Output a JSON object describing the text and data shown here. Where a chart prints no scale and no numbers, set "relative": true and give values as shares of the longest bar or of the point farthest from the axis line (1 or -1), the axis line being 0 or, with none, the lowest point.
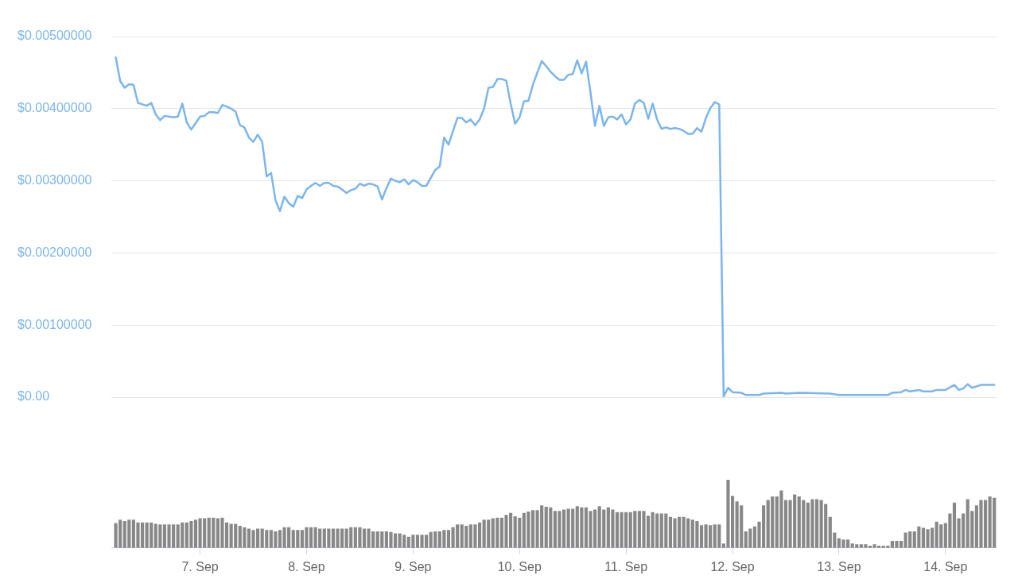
{
  "chart_data": [
    {
      "type": "line",
      "tick_labels": "y",
      "grid": "y",
      "xlim": [
        "--09-06T04:00",
        "--09-14T11:30"
      ],
      "ylim": [
        0,
        0.005
      ],
      "yticks": [
        {
          "value": 0,
          "label": "$0.00"
        },
        {
          "value": 0.001,
          "label": "$0.00100000"
        },
        {
          "value": 0.002,
          "label": "$0.00200000"
        },
        {
          "value": 0.003,
          "label": "$0.00300000"
        },
        {
          "value": 0.004,
          "label": "$0.00400000"
        },
        {
          "value": 0.005,
          "label": "$0.00500000"
        }
      ],
      "x": [
        "--09-06T05:00",
        "--09-06T06:00",
        "--09-06T07:00",
        "--09-06T08:00",
        "--09-06T09:00",
        "--09-06T10:00",
        "--09-06T11:00",
        "--09-06T12:00",
        "--09-06T13:00",
        "--09-06T14:00",
        "--09-06T15:00",
        "--09-06T16:00",
        "--09-06T17:00",
        "--09-06T18:00",
        "--09-06T19:00",
        "--09-06T20:00",
        "--09-06T21:00",
        "--09-06T22:00",
        "--09-06T23:00",
        "--09-07T00:00",
        "--09-07T01:00",
        "--09-07T02:00",
        "--09-07T03:00",
        "--09-07T04:00",
        "--09-07T05:00",
        "--09-07T06:00",
        "--09-07T07:00",
        "--09-07T08:00",
        "--09-07T09:00",
        "--09-07T10:00",
        "--09-07T11:00",
        "--09-07T12:00",
        "--09-07T13:00",
        "--09-07T14:00",
        "--09-07T15:00",
        "--09-07T16:00",
        "--09-07T17:00",
        "--09-07T18:00",
        "--09-07T19:00",
        "--09-07T20:00",
        "--09-07T21:00",
        "--09-07T22:00",
        "--09-07T23:00",
        "--09-08T00:00",
        "--09-08T01:00",
        "--09-08T02:00",
        "--09-08T03:00",
        "--09-08T04:00",
        "--09-08T05:00",
        "--09-08T06:00",
        "--09-08T07:00",
        "--09-08T08:00",
        "--09-08T09:00",
        "--09-08T10:00",
        "--09-08T11:00",
        "--09-08T12:00",
        "--09-08T13:00",
        "--09-08T14:00",
        "--09-08T15:00",
        "--09-08T16:00",
        "--09-08T17:00",
        "--09-08T18:00",
        "--09-08T19:00",
        "--09-08T20:00",
        "--09-08T21:00",
        "--09-08T22:00",
        "--09-08T23:00",
        "--09-09T00:00",
        "--09-09T01:00",
        "--09-09T02:00",
        "--09-09T03:00",
        "--09-09T04:00",
        "--09-09T05:00",
        "--09-09T06:00",
        "--09-09T07:00",
        "--09-09T08:00",
        "--09-09T09:00",
        "--09-09T10:00",
        "--09-09T11:00",
        "--09-09T12:00",
        "--09-09T13:00",
        "--09-09T14:00",
        "--09-09T15:00",
        "--09-09T16:00",
        "--09-09T17:00",
        "--09-09T18:00",
        "--09-09T19:00",
        "--09-09T20:00",
        "--09-09T21:00",
        "--09-09T22:00",
        "--09-09T23:00",
        "--09-10T00:00",
        "--09-10T01:00",
        "--09-10T02:00",
        "--09-10T03:00",
        "--09-10T04:00",
        "--09-10T05:00",
        "--09-10T06:00",
        "--09-10T07:00",
        "--09-10T08:00",
        "--09-10T09:00",
        "--09-10T10:00",
        "--09-10T11:00",
        "--09-10T12:00",
        "--09-10T13:00",
        "--09-10T14:00",
        "--09-10T15:00",
        "--09-10T16:00",
        "--09-10T17:00",
        "--09-10T18:00",
        "--09-10T19:00",
        "--09-10T20:00",
        "--09-10T21:00",
        "--09-10T22:00",
        "--09-10T23:00",
        "--09-11T00:00",
        "--09-11T01:00",
        "--09-11T02:00",
        "--09-11T03:00",
        "--09-11T04:00",
        "--09-11T05:00",
        "--09-11T06:00",
        "--09-11T07:00",
        "--09-11T08:00",
        "--09-11T09:00",
        "--09-11T10:00",
        "--09-11T11:00",
        "--09-11T12:00",
        "--09-11T13:00",
        "--09-11T14:00",
        "--09-11T15:00",
        "--09-11T16:00",
        "--09-11T17:00",
        "--09-11T18:00",
        "--09-11T19:00",
        "--09-11T20:00",
        "--09-11T21:00",
        "--09-11T22:00",
        "--09-11T23:00",
        "--09-12T00:00",
        "--09-12T02:00",
        "--09-12T03:00",
        "--09-12T06:00",
        "--09-12T07:00",
        "--09-12T11:00",
        "--09-12T12:00",
        "--09-12T15:00",
        "--09-12T22:00",
        "--09-13T00:00",
        "--09-13T05:00",
        "--09-13T11:00",
        "--09-13T12:00",
        "--09-13T14:00",
        "--09-13T15:00",
        "--09-13T16:00",
        "--09-13T18:00",
        "--09-13T19:00",
        "--09-13T21:00",
        "--09-13T22:00",
        "--09-14T00:00",
        "--09-14T02:00",
        "--09-14T03:00",
        "--09-14T04:00",
        "--09-14T05:00",
        "--09-14T06:00",
        "--09-14T08:00",
        "--09-14T10:00",
        "--09-14T11:00"
      ],
      "series": [
        {
          "color": "#7cb5ec",
          "values": [
            0.00471,
            0.00438,
            0.00429,
            0.00434,
            0.00433,
            0.00408,
            0.00406,
            0.00404,
            0.00408,
            0.00392,
            0.00384,
            0.0039,
            0.00389,
            0.00388,
            0.00389,
            0.00407,
            0.00381,
            0.00371,
            0.0038,
            0.00389,
            0.0039,
            0.00395,
            0.00395,
            0.00394,
            0.00405,
            0.00403,
            0.004,
            0.00396,
            0.00377,
            0.00374,
            0.0036,
            0.00354,
            0.00364,
            0.00354,
            0.00306,
            0.00311,
            0.00273,
            0.00258,
            0.00278,
            0.00269,
            0.00264,
            0.00279,
            0.00276,
            0.00288,
            0.00293,
            0.00297,
            0.00293,
            0.00297,
            0.00297,
            0.00293,
            0.00292,
            0.00288,
            0.00283,
            0.00287,
            0.00289,
            0.00296,
            0.00293,
            0.00296,
            0.00295,
            0.00292,
            0.00274,
            0.0029,
            0.00303,
            0.003,
            0.00298,
            0.00302,
            0.00295,
            0.00301,
            0.00298,
            0.00293,
            0.00293,
            0.00304,
            0.00315,
            0.0032,
            0.0036,
            0.0035,
            0.00369,
            0.00387,
            0.00387,
            0.00381,
            0.00385,
            0.00377,
            0.00385,
            0.004,
            0.00429,
            0.0043,
            0.00441,
            0.00441,
            0.00439,
            0.00407,
            0.00379,
            0.00388,
            0.0041,
            0.00411,
            0.00433,
            0.0045,
            0.00466,
            0.00459,
            0.00451,
            0.00445,
            0.0044,
            0.0044,
            0.00447,
            0.00448,
            0.00467,
            0.00449,
            0.00465,
            0.00422,
            0.00376,
            0.00404,
            0.00376,
            0.00388,
            0.00389,
            0.00385,
            0.00392,
            0.00378,
            0.00385,
            0.00407,
            0.00412,
            0.00408,
            0.00386,
            0.00407,
            0.00385,
            0.00372,
            0.00374,
            0.00372,
            0.00373,
            0.00372,
            0.00369,
            0.00365,
            0.00365,
            0.00373,
            0.00368,
            0.00387,
            0.00401,
            0.00409,
            0.00406,
            1e-05,
            0.00013,
            7e-05,
            6e-05,
            3e-05,
            3e-05,
            5e-05,
            6e-05,
            5e-05,
            6e-05,
            5e-05,
            3e-05,
            3e-05,
            3e-05,
            6e-05,
            7e-05,
            0.0001,
            8e-05,
            0.0001,
            8e-05,
            8e-05,
            0.0001,
            0.0001,
            0.00017,
            0.0001,
            0.00012,
            0.00018,
            0.00013,
            0.00017,
            0.00017,
            0.00017
          ]
        }
      ]
    },
    {
      "type": "bar",
      "relative": true,
      "tick_labels": "x",
      "xlim": [
        "--09-06T04:00",
        "--09-14T11:30"
      ],
      "xticks": [
        {
          "value": "--09-07",
          "label": "7. Sep"
        },
        {
          "value": "--09-08",
          "label": "8. Sep"
        },
        {
          "value": "--09-09",
          "label": "9. Sep"
        },
        {
          "value": "--09-10",
          "label": "10. Sep"
        },
        {
          "value": "--09-11",
          "label": "11. Sep"
        },
        {
          "value": "--09-12",
          "label": "12. Sep"
        },
        {
          "value": "--09-13",
          "label": "13. Sep"
        },
        {
          "value": "--09-14",
          "label": "14. Sep"
        }
      ],
      "x": [
        "--09-06T05:00",
        "--09-06T06:00",
        "--09-06T07:00",
        "--09-06T08:00",
        "--09-06T09:00",
        "--09-06T10:00",
        "--09-06T11:00",
        "--09-06T12:00",
        "--09-06T13:00",
        "--09-06T14:00",
        "--09-06T15:00",
        "--09-06T16:00",
        "--09-06T17:00",
        "--09-06T18:00",
        "--09-06T19:00",
        "--09-06T20:00",
        "--09-06T21:00",
        "--09-06T22:00",
        "--09-06T23:00",
        "--09-07T00:00",
        "--09-07T01:00",
        "--09-07T02:00",
        "--09-07T03:00",
        "--09-07T04:00",
        "--09-07T05:00",
        "--09-07T06:00",
        "--09-07T07:00",
        "--09-07T08:00",
        "--09-07T09:00",
        "--09-07T10:00",
        "--09-07T11:00",
        "--09-07T12:00",
        "--09-07T13:00",
        "--09-07T14:00",
        "--09-07T15:00",
        "--09-07T16:00",
        "--09-07T17:00",
        "--09-07T18:00",
        "--09-07T19:00",
        "--09-07T20:00",
        "--09-07T21:00",
        "--09-07T22:00",
        "--09-07T23:00",
        "--09-08T00:00",
        "--09-08T01:00",
        "--09-08T02:00",
        "--09-08T03:00",
        "--09-08T04:00",
        "--09-08T05:00",
        "--09-08T06:00",
        "--09-08T07:00",
        "--09-08T08:00",
        "--09-08T09:00",
        "--09-08T10:00",
        "--09-08T11:00",
        "--09-08T12:00",
        "--09-08T13:00",
        "--09-08T14:00",
        "--09-08T15:00",
        "--09-08T16:00",
        "--09-08T17:00",
        "--09-08T18:00",
        "--09-08T19:00",
        "--09-08T20:00",
        "--09-08T21:00",
        "--09-08T22:00",
        "--09-08T23:00",
        "--09-09T00:00",
        "--09-09T01:00",
        "--09-09T02:00",
        "--09-09T03:00",
        "--09-09T04:00",
        "--09-09T05:00",
        "--09-09T06:00",
        "--09-09T07:00",
        "--09-09T08:00",
        "--09-09T09:00",
        "--09-09T10:00",
        "--09-09T11:00",
        "--09-09T12:00",
        "--09-09T13:00",
        "--09-09T14:00",
        "--09-09T15:00",
        "--09-09T16:00",
        "--09-09T17:00",
        "--09-09T18:00",
        "--09-09T19:00",
        "--09-09T20:00",
        "--09-09T21:00",
        "--09-09T22:00",
        "--09-09T23:00",
        "--09-10T00:00",
        "--09-10T01:00",
        "--09-10T02:00",
        "--09-10T03:00",
        "--09-10T04:00",
        "--09-10T05:00",
        "--09-10T06:00",
        "--09-10T07:00",
        "--09-10T08:00",
        "--09-10T09:00",
        "--09-10T10:00",
        "--09-10T11:00",
        "--09-10T12:00",
        "--09-10T13:00",
        "--09-10T14:00",
        "--09-10T15:00",
        "--09-10T16:00",
        "--09-10T17:00",
        "--09-10T18:00",
        "--09-10T19:00",
        "--09-10T20:00",
        "--09-10T21:00",
        "--09-10T22:00",
        "--09-10T23:00",
        "--09-11T00:00",
        "--09-11T01:00",
        "--09-11T02:00",
        "--09-11T03:00",
        "--09-11T04:00",
        "--09-11T05:00",
        "--09-11T06:00",
        "--09-11T07:00",
        "--09-11T08:00",
        "--09-11T09:00",
        "--09-11T10:00",
        "--09-11T11:00",
        "--09-11T12:00",
        "--09-11T13:00",
        "--09-11T14:00",
        "--09-11T15:00",
        "--09-11T16:00",
        "--09-11T17:00",
        "--09-11T18:00",
        "--09-11T19:00",
        "--09-11T20:00",
        "--09-11T21:00",
        "--09-11T22:00",
        "--09-11T23:00",
        "--09-12T00:00",
        "--09-12T01:00",
        "--09-12T02:00",
        "--09-12T03:00",
        "--09-12T04:00",
        "--09-12T05:00",
        "--09-12T06:00",
        "--09-12T07:00",
        "--09-12T08:00",
        "--09-12T09:00",
        "--09-12T10:00",
        "--09-12T11:00",
        "--09-12T12:00",
        "--09-12T13:00",
        "--09-12T14:00",
        "--09-12T15:00",
        "--09-12T16:00",
        "--09-12T17:00",
        "--09-12T18:00",
        "--09-12T19:00",
        "--09-12T20:00",
        "--09-12T21:00",
        "--09-12T22:00",
        "--09-12T23:00",
        "--09-13T00:00",
        "--09-13T01:00",
        "--09-13T02:00",
        "--09-13T03:00",
        "--09-13T04:00",
        "--09-13T05:00",
        "--09-13T06:00",
        "--09-13T07:00",
        "--09-13T08:00",
        "--09-13T09:00",
        "--09-13T10:00",
        "--09-13T11:00",
        "--09-13T12:00",
        "--09-13T13:00",
        "--09-13T14:00",
        "--09-13T15:00",
        "--09-13T16:00",
        "--09-13T17:00",
        "--09-13T18:00",
        "--09-13T19:00",
        "--09-13T20:00",
        "--09-13T21:00",
        "--09-13T22:00",
        "--09-13T23:00",
        "--09-14T00:00",
        "--09-14T01:00",
        "--09-14T02:00",
        "--09-14T03:00",
        "--09-14T04:00",
        "--09-14T05:00",
        "--09-14T06:00",
        "--09-14T07:00",
        "--09-14T08:00",
        "--09-14T09:00",
        "--09-14T10:00",
        "--09-14T11:00"
      ],
      "series": [
        {
          "color": "#888888",
          "values": [
            0.36,
            0.41,
            0.39,
            0.41,
            0.41,
            0.37,
            0.37,
            0.37,
            0.37,
            0.35,
            0.34,
            0.34,
            0.34,
            0.34,
            0.34,
            0.37,
            0.37,
            0.39,
            0.41,
            0.43,
            0.43,
            0.44,
            0.44,
            0.43,
            0.44,
            0.37,
            0.35,
            0.35,
            0.32,
            0.3,
            0.28,
            0.26,
            0.28,
            0.28,
            0.26,
            0.26,
            0.24,
            0.26,
            0.3,
            0.3,
            0.26,
            0.26,
            0.26,
            0.3,
            0.3,
            0.3,
            0.28,
            0.28,
            0.28,
            0.28,
            0.28,
            0.28,
            0.28,
            0.3,
            0.3,
            0.3,
            0.28,
            0.28,
            0.24,
            0.24,
            0.24,
            0.24,
            0.23,
            0.21,
            0.21,
            0.19,
            0.16,
            0.19,
            0.19,
            0.19,
            0.19,
            0.23,
            0.24,
            0.24,
            0.26,
            0.26,
            0.3,
            0.34,
            0.34,
            0.32,
            0.34,
            0.34,
            0.37,
            0.41,
            0.41,
            0.43,
            0.44,
            0.44,
            0.48,
            0.51,
            0.46,
            0.44,
            0.51,
            0.53,
            0.55,
            0.55,
            0.62,
            0.6,
            0.59,
            0.54,
            0.54,
            0.56,
            0.57,
            0.57,
            0.61,
            0.59,
            0.59,
            0.54,
            0.56,
            0.61,
            0.56,
            0.59,
            0.56,
            0.52,
            0.52,
            0.52,
            0.52,
            0.54,
            0.54,
            0.54,
            0.47,
            0.52,
            0.5,
            0.5,
            0.5,
            0.45,
            0.43,
            0.45,
            0.45,
            0.43,
            0.41,
            0.39,
            0.33,
            0.34,
            0.33,
            0.34,
            0.34,
            0.06,
            1,
            0.76,
            0.68,
            0.62,
            0.24,
            0.28,
            0.31,
            0.38,
            0.62,
            0.7,
            0.75,
            0.75,
            0.84,
            0.7,
            0.7,
            0.78,
            0.75,
            0.7,
            0.66,
            0.71,
            0.71,
            0.7,
            0.64,
            0.45,
            0.22,
            0.14,
            0.12,
            0.12,
            0.06,
            0.05,
            0.05,
            0.05,
            0.03,
            0.05,
            0.03,
            0.03,
            0.03,
            0.1,
            0.1,
            0.1,
            0.22,
            0.24,
            0.24,
            0.31,
            0.29,
            0.27,
            0.29,
            0.38,
            0.34,
            0.36,
            0.5,
            0.66,
            0.43,
            0.5,
            0.71,
            0.54,
            0.62,
            0.7,
            0.7,
            0.75,
            0.73
          ]
        }
      ]
    }
  ]
}
